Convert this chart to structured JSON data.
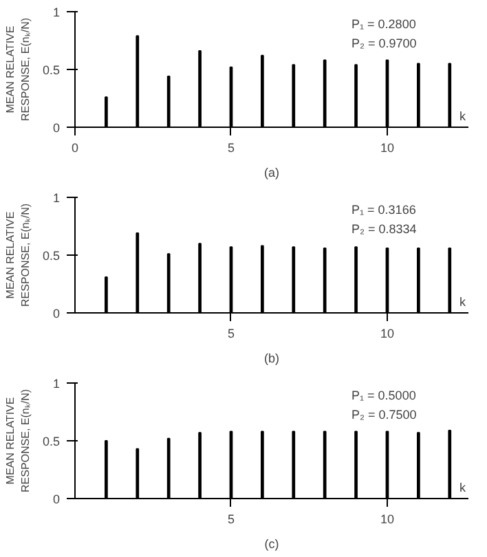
{
  "chart_data": [
    {
      "type": "bar",
      "title": "(a)",
      "xlabel": "k",
      "ylabel": "MEAN RELATIVE\nRESPONSE, E(nₖ/N)",
      "annotations": [
        "P₁ = 0.2800",
        "P₂ = 0.9700"
      ],
      "x": [
        1,
        2,
        3,
        4,
        5,
        6,
        7,
        8,
        9,
        10,
        11,
        12
      ],
      "values": [
        0.26,
        0.79,
        0.44,
        0.66,
        0.52,
        0.62,
        0.54,
        0.58,
        0.54,
        0.58,
        0.55,
        0.55
      ],
      "color": "#000000",
      "xlim": [
        0,
        12.6
      ],
      "xticks": [
        0,
        5,
        10
      ],
      "ylim": [
        0,
        1
      ],
      "yticks": [
        0,
        0.5,
        1
      ],
      "grid": false
    },
    {
      "type": "bar",
      "title": "(b)",
      "xlabel": "k",
      "ylabel": "MEAN RELATIVE\nRESPONSE, E(nₖ/N)",
      "annotations": [
        "P₁ = 0.3166",
        "P₂ = 0.8334"
      ],
      "x": [
        1,
        2,
        3,
        4,
        5,
        6,
        7,
        8,
        9,
        10,
        11,
        12
      ],
      "values": [
        0.31,
        0.69,
        0.51,
        0.6,
        0.57,
        0.58,
        0.57,
        0.56,
        0.57,
        0.56,
        0.56,
        0.56
      ],
      "color": "#000000",
      "xlim": [
        0,
        12.6
      ],
      "xticks": [
        5,
        10
      ],
      "ylim": [
        0,
        1
      ],
      "yticks": [
        0,
        0.5,
        1
      ],
      "grid": false
    },
    {
      "type": "bar",
      "title": "(c)",
      "xlabel": "k",
      "ylabel": "MEAN RELATIVE\nRESPONSE, E(nₖ/N)",
      "annotations": [
        "P₁ = 0.5000",
        "P₂ = 0.7500"
      ],
      "x": [
        1,
        2,
        3,
        4,
        5,
        6,
        7,
        8,
        9,
        10,
        11,
        12
      ],
      "values": [
        0.5,
        0.43,
        0.52,
        0.57,
        0.58,
        0.58,
        0.58,
        0.58,
        0.58,
        0.58,
        0.57,
        0.59
      ],
      "color": "#000000",
      "xlim": [
        0,
        12.6
      ],
      "xticks": [
        5,
        10
      ],
      "ylim": [
        0,
        1
      ],
      "yticks": [
        0,
        0.5,
        1
      ],
      "grid": false
    }
  ]
}
